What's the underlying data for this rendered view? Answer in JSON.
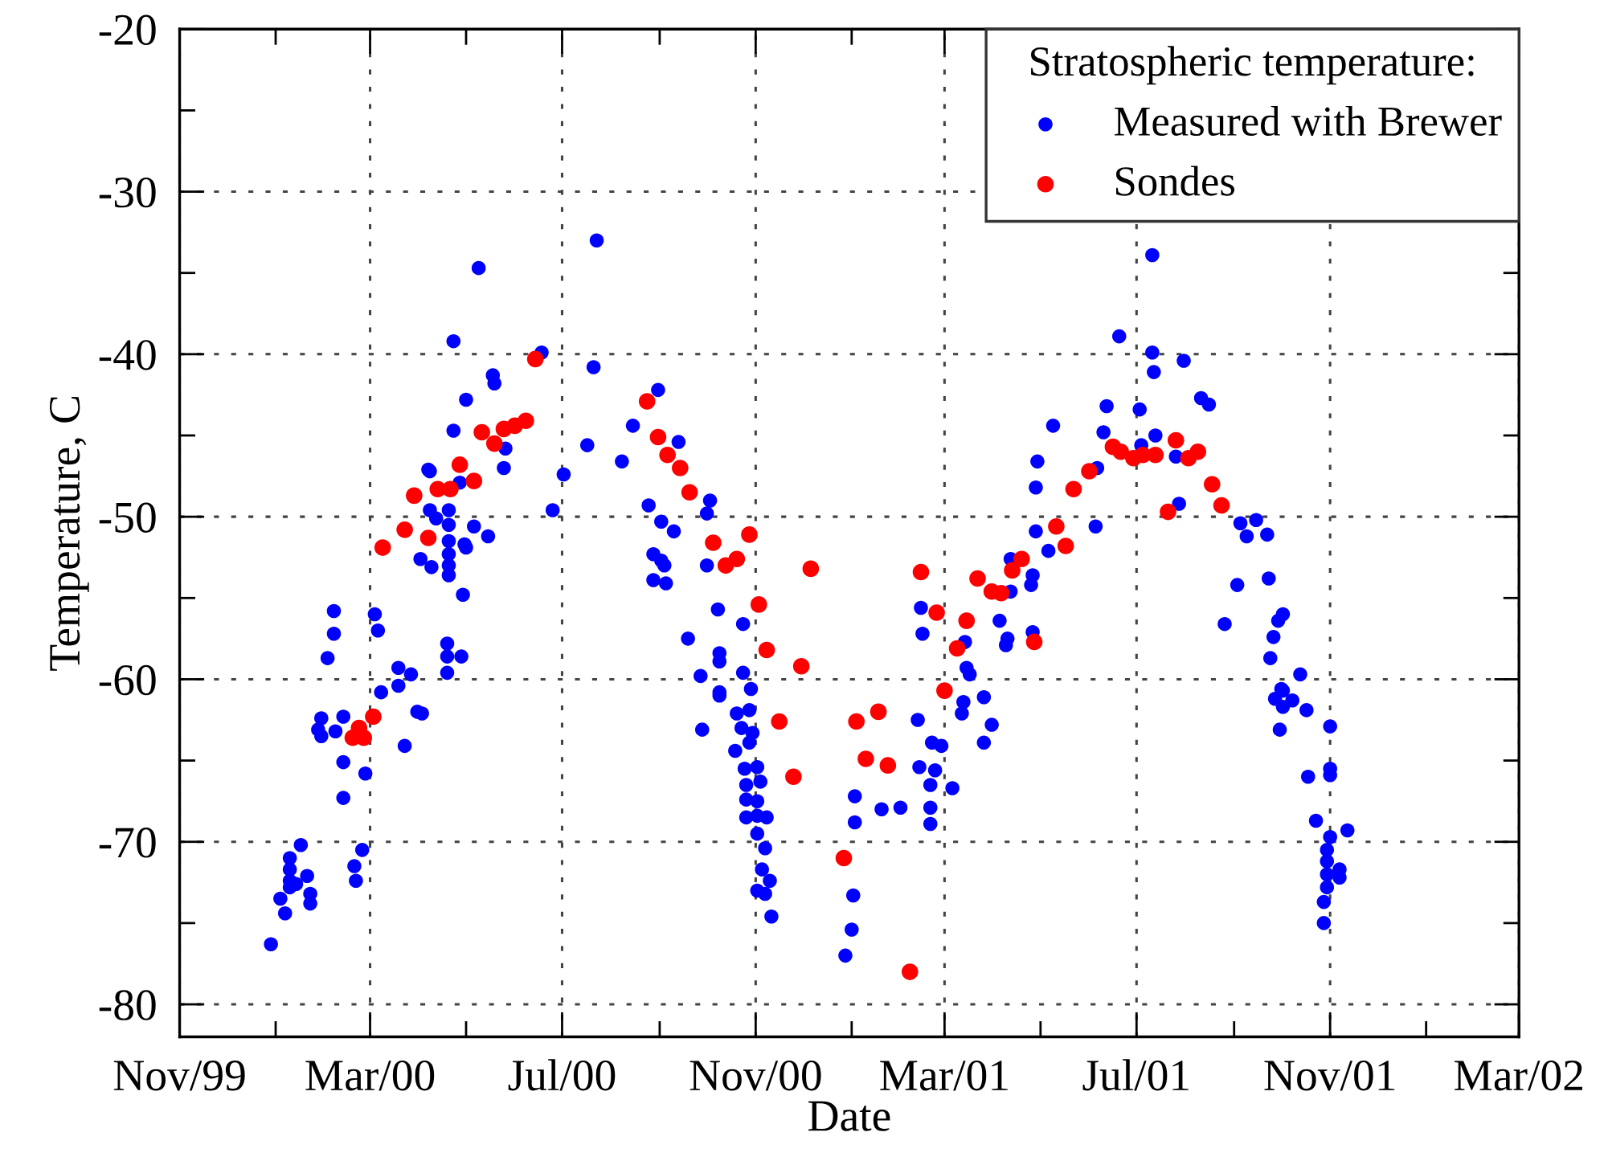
{
  "chart_data": {
    "type": "scatter",
    "xlabel": "Date",
    "ylabel": "Temperature, C",
    "legend_title": "Stratospheric temperature:",
    "legend": "top right",
    "grid": true,
    "marker": "circle",
    "xlim": [
      "1999-11-01",
      "2002-03-01"
    ],
    "xticks": [
      {
        "value": "1999-11-01",
        "label": "Nov/99"
      },
      {
        "value": "2000-01-01",
        "label": null
      },
      {
        "value": "2000-03-01",
        "label": "Mar/00"
      },
      {
        "value": "2000-05-01",
        "label": null
      },
      {
        "value": "2000-07-01",
        "label": "Jul/00"
      },
      {
        "value": "2000-09-01",
        "label": null
      },
      {
        "value": "2000-11-01",
        "label": "Nov/00"
      },
      {
        "value": "2001-01-01",
        "label": null
      },
      {
        "value": "2001-03-01",
        "label": "Mar/01"
      },
      {
        "value": "2001-05-01",
        "label": null
      },
      {
        "value": "2001-07-01",
        "label": "Jul/01"
      },
      {
        "value": "2001-09-01",
        "label": null
      },
      {
        "value": "2001-11-01",
        "label": "Nov/01"
      },
      {
        "value": "2002-01-01",
        "label": null
      },
      {
        "value": "2002-03-01",
        "label": "Mar/02"
      }
    ],
    "ylim": [
      -82,
      -20
    ],
    "yticks": [
      {
        "value": -80,
        "label": "-80"
      },
      {
        "value": -75,
        "label": null
      },
      {
        "value": -70,
        "label": "-70"
      },
      {
        "value": -65,
        "label": null
      },
      {
        "value": -60,
        "label": "-60"
      },
      {
        "value": -55,
        "label": null
      },
      {
        "value": -50,
        "label": "-50"
      },
      {
        "value": -45,
        "label": null
      },
      {
        "value": -40,
        "label": "-40"
      },
      {
        "value": -35,
        "label": null
      },
      {
        "value": -30,
        "label": "-30"
      },
      {
        "value": -25,
        "label": null
      },
      {
        "value": -20,
        "label": "-20"
      }
    ],
    "series": [
      {
        "name": "Measured with Brewer",
        "color": "#0000ff",
        "x": [
          "1999-12-29",
          "2000-01-04",
          "2000-01-07",
          "2000-01-10",
          "2000-01-10",
          "2000-01-10",
          "2000-01-10",
          "2000-01-14",
          "2000-01-17",
          "2000-01-21",
          "2000-01-23",
          "2000-01-23",
          "2000-01-28",
          "2000-01-30",
          "2000-01-30",
          "2000-02-03",
          "2000-02-07",
          "2000-02-07",
          "2000-02-08",
          "2000-02-13",
          "2000-02-13",
          "2000-02-13",
          "2000-02-20",
          "2000-02-21",
          "2000-02-25",
          "2000-02-27",
          "2000-03-04",
          "2000-03-06",
          "2000-03-08",
          "2000-03-19",
          "2000-03-19",
          "2000-03-23",
          "2000-03-27",
          "2000-03-31",
          "2000-04-02",
          "2000-04-03",
          "2000-04-07",
          "2000-04-08",
          "2000-04-08",
          "2000-04-09",
          "2000-04-12",
          "2000-04-19",
          "2000-04-19",
          "2000-04-19",
          "2000-04-20",
          "2000-04-20",
          "2000-04-20",
          "2000-04-20",
          "2000-04-20",
          "2000-04-20",
          "2000-04-23",
          "2000-04-23",
          "2000-04-27",
          "2000-04-28",
          "2000-04-29",
          "2000-04-30",
          "2000-05-01",
          "2000-05-01",
          "2000-05-06",
          "2000-05-09",
          "2000-05-15",
          "2000-05-18",
          "2000-05-19",
          "2000-05-25",
          "2000-05-26",
          "2000-06-18",
          "2000-06-25",
          "2000-07-02",
          "2000-07-17",
          "2000-07-21",
          "2000-07-23",
          "2000-08-08",
          "2000-08-15",
          "2000-08-25",
          "2000-08-28",
          "2000-08-28",
          "2000-08-31",
          "2000-09-02",
          "2000-09-02",
          "2000-09-04",
          "2000-09-05",
          "2000-09-10",
          "2000-09-13",
          "2000-09-19",
          "2000-09-27",
          "2000-09-28",
          "2000-10-01",
          "2000-10-01",
          "2000-10-03",
          "2000-10-08",
          "2000-10-09",
          "2000-10-09",
          "2000-10-09",
          "2000-10-09",
          "2000-10-19",
          "2000-10-20",
          "2000-10-23",
          "2000-10-24",
          "2000-10-24",
          "2000-10-25",
          "2000-10-26",
          "2000-10-26",
          "2000-10-26",
          "2000-10-28",
          "2000-10-28",
          "2000-10-29",
          "2000-10-30",
          "2000-11-02",
          "2000-11-02",
          "2000-11-02",
          "2000-11-02",
          "2000-11-02",
          "2000-11-04",
          "2000-11-05",
          "2000-11-07",
          "2000-11-07",
          "2000-11-08",
          "2000-11-10",
          "2000-11-11",
          "2000-12-28",
          "2001-01-01",
          "2001-01-02",
          "2001-01-03",
          "2001-01-03",
          "2001-01-20",
          "2001-02-01",
          "2001-02-12",
          "2001-02-13",
          "2001-02-14",
          "2001-02-15",
          "2001-02-20",
          "2001-02-20",
          "2001-02-20",
          "2001-02-21",
          "2001-02-23",
          "2001-02-27",
          "2001-03-06",
          "2001-03-12",
          "2001-03-13",
          "2001-03-14",
          "2001-03-15",
          "2001-03-17",
          "2001-03-26",
          "2001-03-26",
          "2001-03-31",
          "2001-04-05",
          "2001-04-09",
          "2001-04-10",
          "2001-04-12",
          "2001-04-12",
          "2001-04-25",
          "2001-04-26",
          "2001-04-26",
          "2001-04-28",
          "2001-04-28",
          "2001-04-29",
          "2001-05-06",
          "2001-05-09",
          "2001-06-05",
          "2001-06-06",
          "2001-06-10",
          "2001-06-12",
          "2001-06-20",
          "2001-07-03",
          "2001-07-04",
          "2001-07-11",
          "2001-07-11",
          "2001-07-12",
          "2001-07-13",
          "2001-07-26",
          "2001-07-28",
          "2001-07-31",
          "2001-08-11",
          "2001-08-16",
          "2001-08-26",
          "2001-09-03",
          "2001-09-05",
          "2001-09-09",
          "2001-09-15",
          "2001-09-22",
          "2001-09-23",
          "2001-09-24",
          "2001-09-26",
          "2001-09-27",
          "2001-09-29",
          "2001-09-30",
          "2001-10-01",
          "2001-10-02",
          "2001-10-02",
          "2001-10-02",
          "2001-10-08",
          "2001-10-13",
          "2001-10-17",
          "2001-10-18",
          "2001-10-23",
          "2001-10-28",
          "2001-10-28",
          "2001-10-30",
          "2001-10-30",
          "2001-10-30",
          "2001-10-30",
          "2001-11-01",
          "2001-11-01",
          "2001-11-01",
          "2001-11-01",
          "2001-11-07",
          "2001-11-07",
          "2001-11-12"
        ],
        "values": [
          -76.3,
          -73.5,
          -74.4,
          -71.0,
          -71.7,
          -72.4,
          -72.8,
          -72.6,
          -70.2,
          -72.1,
          -73.2,
          -73.8,
          -63.1,
          -63.5,
          -62.4,
          -58.7,
          -57.2,
          -55.8,
          -63.2,
          -62.3,
          -65.1,
          -67.3,
          -71.5,
          -72.4,
          -70.5,
          -65.8,
          -56.0,
          -57.0,
          -60.8,
          -59.3,
          -60.4,
          -64.1,
          -59.7,
          -62.0,
          -52.6,
          -62.1,
          -47.1,
          -47.2,
          -49.6,
          -53.1,
          -50.1,
          -57.8,
          -58.6,
          -59.6,
          -49.6,
          -50.5,
          -51.5,
          -52.3,
          -53.0,
          -53.6,
          -39.2,
          -44.7,
          -47.9,
          -58.6,
          -54.8,
          -51.7,
          -51.9,
          -42.8,
          -50.6,
          -34.7,
          -51.2,
          -41.3,
          -41.8,
          -47.0,
          -45.8,
          -39.9,
          -49.6,
          -47.4,
          -45.6,
          -40.8,
          -33.0,
          -46.6,
          -44.4,
          -49.3,
          -52.3,
          -53.9,
          -42.2,
          -50.3,
          -52.7,
          -53.0,
          -54.1,
          -50.9,
          -45.4,
          -57.5,
          -59.8,
          -63.1,
          -49.8,
          -53.0,
          -49.0,
          -55.7,
          -58.4,
          -58.9,
          -60.8,
          -61.0,
          -64.4,
          -62.1,
          -63.0,
          -56.6,
          -59.6,
          -65.5,
          -66.5,
          -67.4,
          -68.5,
          -61.9,
          -63.9,
          -60.6,
          -63.3,
          -65.4,
          -67.5,
          -68.4,
          -69.5,
          -73.0,
          -66.3,
          -71.7,
          -70.4,
          -73.2,
          -68.5,
          -72.4,
          -74.6,
          -77.0,
          -75.4,
          -73.3,
          -67.2,
          -68.8,
          -68.0,
          -67.9,
          -62.5,
          -65.4,
          -55.6,
          -57.2,
          -66.5,
          -67.9,
          -68.9,
          -63.9,
          -65.6,
          -64.1,
          -66.7,
          -62.1,
          -61.4,
          -57.7,
          -59.3,
          -59.7,
          -61.1,
          -63.9,
          -62.8,
          -56.4,
          -57.9,
          -57.5,
          -52.6,
          -54.6,
          -54.2,
          -53.6,
          -57.1,
          -50.9,
          -48.2,
          -46.6,
          -52.1,
          -44.4,
          -50.6,
          -47.0,
          -44.8,
          -43.2,
          -38.9,
          -43.4,
          -45.6,
          -33.9,
          -39.9,
          -41.1,
          -45.0,
          -46.3,
          -49.2,
          -40.4,
          -42.7,
          -43.1,
          -56.6,
          -54.2,
          -50.4,
          -51.2,
          -50.2,
          -51.1,
          -53.8,
          -58.7,
          -57.4,
          -61.2,
          -56.4,
          -63.1,
          -60.6,
          -56.0,
          -60.7,
          -61.7,
          -61.3,
          -59.7,
          -61.9,
          -66.0,
          -68.7,
          -73.7,
          -75.0,
          -70.5,
          -71.2,
          -72.0,
          -72.8,
          -62.9,
          -65.5,
          -65.9,
          -69.7,
          -71.7,
          -72.2,
          -69.3
        ]
      },
      {
        "name": "Sondes",
        "color": "#ff0000",
        "x": [
          "2000-02-19",
          "2000-02-23",
          "2000-02-26",
          "2000-03-03",
          "2000-03-09",
          "2000-03-23",
          "2000-03-29",
          "2000-04-07",
          "2000-04-13",
          "2000-04-21",
          "2000-04-27",
          "2000-05-06",
          "2000-05-11",
          "2000-05-19",
          "2000-05-25",
          "2000-06-01",
          "2000-06-08",
          "2000-06-14",
          "2000-08-24",
          "2000-08-31",
          "2000-09-06",
          "2000-09-14",
          "2000-09-20",
          "2000-10-05",
          "2000-10-13",
          "2000-10-20",
          "2000-10-28",
          "2000-11-03",
          "2000-11-08",
          "2000-11-16",
          "2000-11-25",
          "2000-11-30",
          "2000-12-06",
          "2000-12-27",
          "2001-01-04",
          "2001-01-10",
          "2001-01-18",
          "2001-01-24",
          "2001-02-07",
          "2001-02-14",
          "2001-02-24",
          "2001-03-01",
          "2001-03-09",
          "2001-03-15",
          "2001-03-22",
          "2001-03-31",
          "2001-04-06",
          "2001-04-13",
          "2001-04-19",
          "2001-04-27",
          "2001-05-11",
          "2001-05-17",
          "2001-05-22",
          "2001-06-01",
          "2001-06-16",
          "2001-06-21",
          "2001-06-29",
          "2001-07-05",
          "2001-07-13",
          "2001-07-21",
          "2001-07-26",
          "2001-08-03",
          "2001-08-09",
          "2001-08-18",
          "2001-08-24"
        ],
        "values": [
          -63.6,
          -63.0,
          -63.6,
          -62.3,
          -51.9,
          -50.8,
          -48.7,
          -51.3,
          -48.3,
          -48.3,
          -46.8,
          -47.8,
          -44.8,
          -45.5,
          -44.6,
          -44.4,
          -44.1,
          -40.3,
          -42.9,
          -45.1,
          -46.2,
          -47.0,
          -48.5,
          -51.6,
          -53.0,
          -52.6,
          -51.1,
          -55.4,
          -58.2,
          -62.6,
          -66.0,
          -59.2,
          -53.2,
          -71.0,
          -62.6,
          -64.9,
          -62.0,
          -65.3,
          -78.0,
          -53.4,
          -55.9,
          -60.7,
          -58.1,
          -56.4,
          -53.8,
          -54.6,
          -54.7,
          -53.3,
          -52.6,
          -57.7,
          -50.6,
          -51.8,
          -48.3,
          -47.2,
          -45.7,
          -46.0,
          -46.4,
          -46.2,
          -46.2,
          -49.7,
          -45.3,
          -46.4,
          -46.0,
          -48.0,
          -49.3
        ]
      }
    ]
  }
}
